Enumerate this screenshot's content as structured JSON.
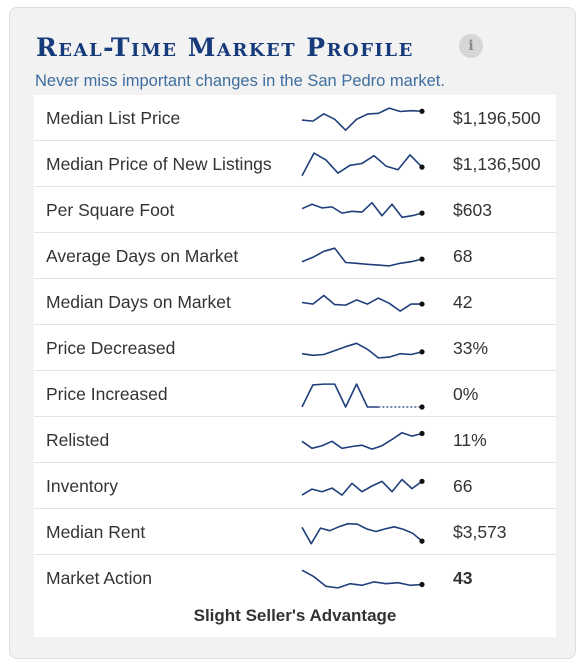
{
  "header": {
    "title": "Real-Time Market Profile",
    "info_icon": "info-icon",
    "subtitle": "Never miss important changes in the San Pedro market."
  },
  "metrics": [
    {
      "label": "Median List Price",
      "value": "$1,196,500",
      "spark": [
        0.58,
        0.62,
        0.34,
        0.55,
        0.97,
        0.55,
        0.35,
        0.32,
        0.12,
        0.25,
        0.22,
        0.24
      ]
    },
    {
      "label": "Median Price of New Listings",
      "value": "$1,136,500",
      "spark": [
        0.95,
        0.08,
        0.35,
        0.85,
        0.55,
        0.48,
        0.18,
        0.58,
        0.72,
        0.15,
        0.62
      ]
    },
    {
      "label": "Per Square Foot",
      "value": "$603",
      "spark": [
        0.45,
        0.28,
        0.42,
        0.38,
        0.62,
        0.55,
        0.58,
        0.22,
        0.72,
        0.28,
        0.78,
        0.72,
        0.62
      ]
    },
    {
      "label": "Average Days on Market",
      "value": "68",
      "spark": [
        0.72,
        0.55,
        0.32,
        0.2,
        0.75,
        0.78,
        0.82,
        0.85,
        0.88,
        0.78,
        0.72,
        0.62
      ]
    },
    {
      "label": "Median Days on Market",
      "value": "42",
      "spark": [
        0.52,
        0.58,
        0.25,
        0.6,
        0.62,
        0.42,
        0.58,
        0.35,
        0.55,
        0.85,
        0.58,
        0.58
      ]
    },
    {
      "label": "Price Decreased",
      "value": "33%",
      "spark": [
        0.72,
        0.78,
        0.75,
        0.6,
        0.45,
        0.32,
        0.55,
        0.88,
        0.85,
        0.72,
        0.75,
        0.65
      ]
    },
    {
      "label": "Price Increased",
      "value": "0%",
      "spark": [
        1.0,
        0.15,
        0.12,
        0.12,
        1.0,
        0.12,
        1.0,
        1.0,
        1.0,
        1.0,
        1.0,
        1.0
      ],
      "dotted_from": 7
    },
    {
      "label": "Relisted",
      "value": "11%",
      "spark": [
        0.55,
        0.82,
        0.72,
        0.55,
        0.82,
        0.75,
        0.7,
        0.85,
        0.72,
        0.48,
        0.22,
        0.35,
        0.25
      ]
    },
    {
      "label": "Inventory",
      "value": "66",
      "spark": [
        0.85,
        0.62,
        0.72,
        0.58,
        0.85,
        0.4,
        0.72,
        0.5,
        0.32,
        0.72,
        0.25,
        0.6,
        0.32
      ]
    },
    {
      "label": "Median Rent",
      "value": "$3,573",
      "spark": [
        0.32,
        0.95,
        0.35,
        0.45,
        0.3,
        0.18,
        0.2,
        0.38,
        0.48,
        0.38,
        0.3,
        0.4,
        0.55,
        0.85
      ]
    },
    {
      "label": "Market Action",
      "value": "43",
      "value_bold": true,
      "spark": [
        0.2,
        0.45,
        0.82,
        0.88,
        0.72,
        0.78,
        0.65,
        0.72,
        0.68,
        0.78,
        0.75
      ]
    }
  ],
  "footer": {
    "market_action_text": "Slight Seller's Advantage"
  },
  "colors": {
    "title": "#173a7a",
    "subtitle": "#3f6ea0",
    "sparkline": "#1f3f7a",
    "panel_background": "#f2f2f2",
    "table_background": "#ffffff",
    "row_divider": "#e3e3e3"
  }
}
